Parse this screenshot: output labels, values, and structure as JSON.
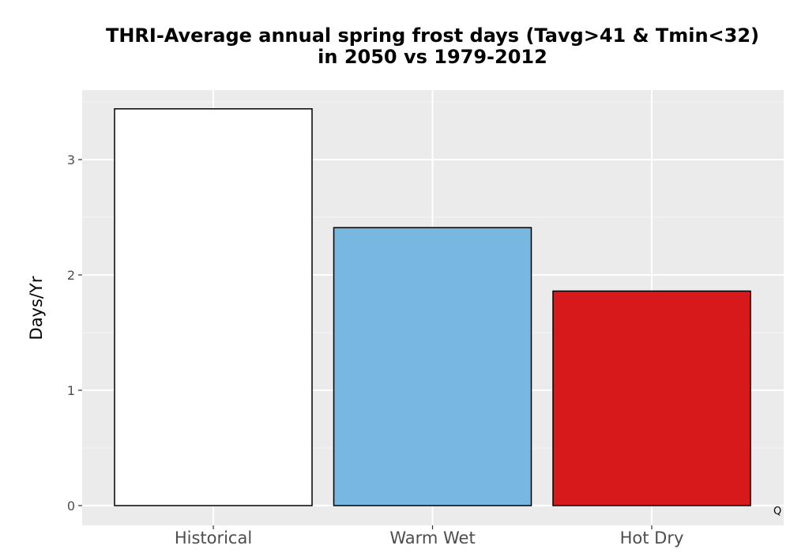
{
  "chart_data": {
    "type": "bar",
    "title_line1": "THRI-Average annual spring frost days (Tavg>41 & Tmin<32)",
    "title_line2": "in 2050 vs 1979-2012",
    "xlabel": "",
    "ylabel": "Days/Yr",
    "categories": [
      "Historical",
      "Warm Wet",
      "Hot Dry"
    ],
    "values": [
      3.44,
      2.41,
      1.86
    ],
    "colors": [
      "#ffffff",
      "#78b7e0",
      "#d7191c"
    ],
    "ylim": [
      -0.17,
      3.6
    ],
    "yticks": [
      0,
      1,
      2,
      3
    ],
    "grid": true,
    "background": "#ebebeb",
    "corner_mark": "Q"
  }
}
